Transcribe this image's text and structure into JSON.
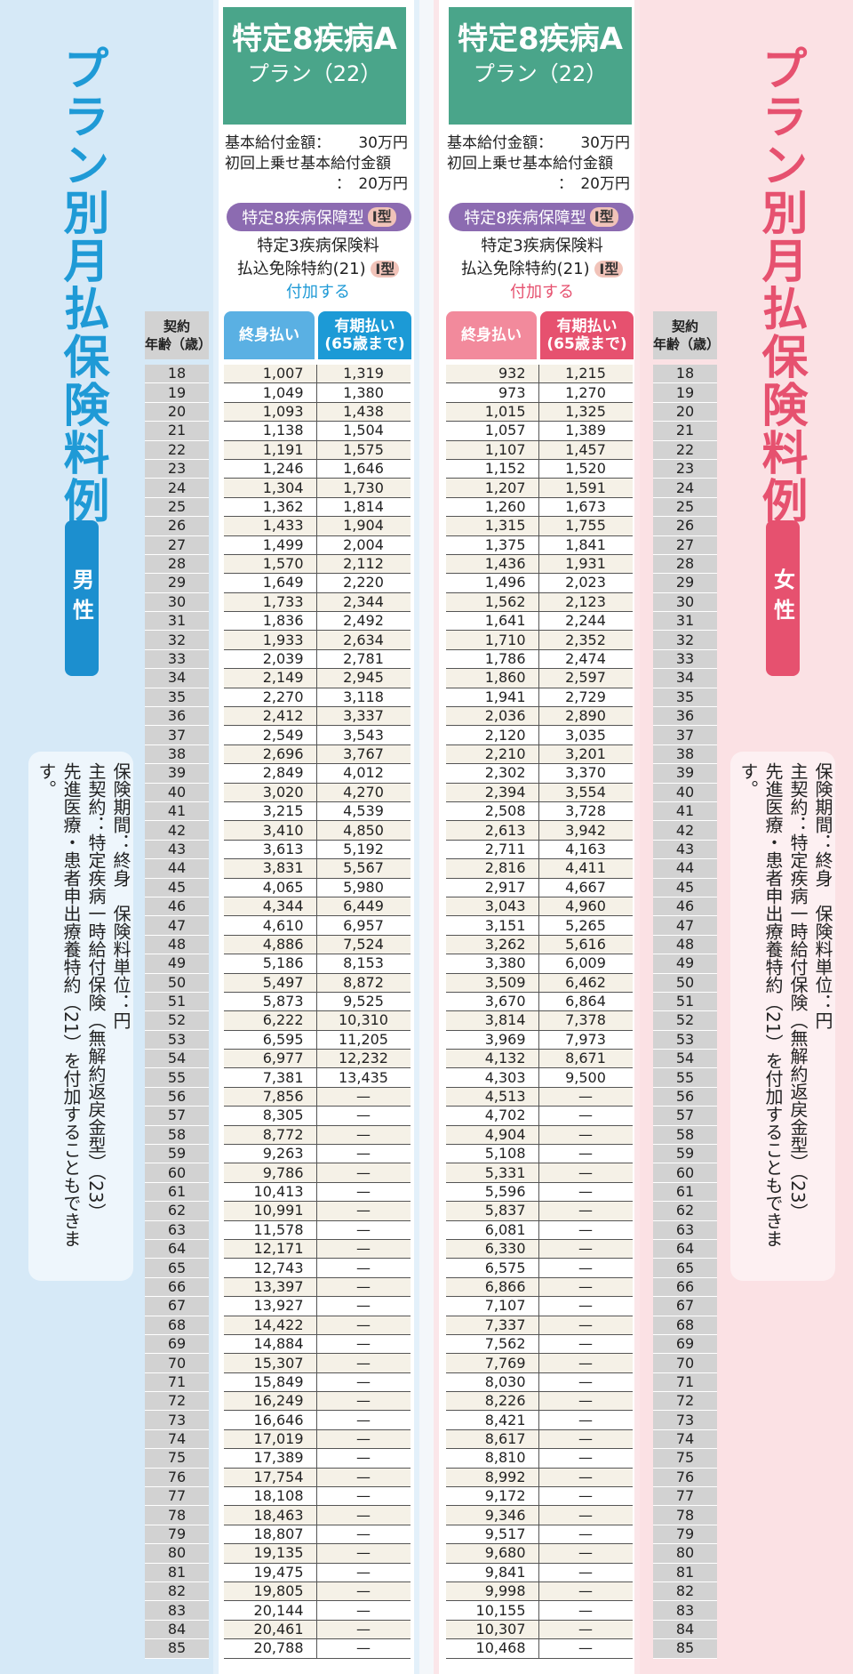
{
  "title": "プラン別月払保険料例",
  "male_label": "男性",
  "female_label": "女性",
  "notes": [
    "保険期間：終身　保険料単位：円",
    "主契約：特定疾病一時給付保険（無解約返戻金型）（23）",
    "先進医療・患者申出療養特約（21）を付加することもできます。"
  ],
  "plan": {
    "name": "特定8疾病A",
    "sub": "プラン（22）",
    "base_label": "基本給付金額：",
    "base_value": "30万円",
    "first_label": "初回上乗せ基本給付金額",
    "first_value": "：　20万円",
    "coverage": "特定8疾病保障型",
    "coverage_badge": "Ⅰ型",
    "rider_line1": "特定3疾病保険料",
    "rider_line2": "払込免除特約(21)",
    "rider_badge": "Ⅰ型",
    "rider_add": "付加する"
  },
  "headers": {
    "age": "契約\n年齢（歳）",
    "lifetime": "終身払い",
    "term": "有期払い\n(65歳まで)"
  },
  "ages": [
    18,
    19,
    20,
    21,
    22,
    23,
    24,
    25,
    26,
    27,
    28,
    29,
    30,
    31,
    32,
    33,
    34,
    35,
    36,
    37,
    38,
    39,
    40,
    41,
    42,
    43,
    44,
    45,
    46,
    47,
    48,
    49,
    50,
    51,
    52,
    53,
    54,
    55,
    56,
    57,
    58,
    59,
    60,
    61,
    62,
    63,
    64,
    65,
    66,
    67,
    68,
    69,
    70,
    71,
    72,
    73,
    74,
    75,
    76,
    77,
    78,
    79,
    80,
    81,
    82,
    83,
    84,
    85
  ],
  "male_lifetime": [
    "1,007",
    "1,049",
    "1,093",
    "1,138",
    "1,191",
    "1,246",
    "1,304",
    "1,362",
    "1,433",
    "1,499",
    "1,570",
    "1,649",
    "1,733",
    "1,836",
    "1,933",
    "2,039",
    "2,149",
    "2,270",
    "2,412",
    "2,549",
    "2,696",
    "2,849",
    "3,020",
    "3,215",
    "3,410",
    "3,613",
    "3,831",
    "4,065",
    "4,344",
    "4,610",
    "4,886",
    "5,186",
    "5,497",
    "5,873",
    "6,222",
    "6,595",
    "6,977",
    "7,381",
    "7,856",
    "8,305",
    "8,772",
    "9,263",
    "9,786",
    "10,413",
    "10,991",
    "11,578",
    "12,171",
    "12,743",
    "13,397",
    "13,927",
    "14,422",
    "14,884",
    "15,307",
    "15,849",
    "16,249",
    "16,646",
    "17,019",
    "17,389",
    "17,754",
    "18,108",
    "18,463",
    "18,807",
    "19,135",
    "19,475",
    "19,805",
    "20,144",
    "20,461",
    "20,788"
  ],
  "male_term": [
    "1,319",
    "1,380",
    "1,438",
    "1,504",
    "1,575",
    "1,646",
    "1,730",
    "1,814",
    "1,904",
    "2,004",
    "2,112",
    "2,220",
    "2,344",
    "2,492",
    "2,634",
    "2,781",
    "2,945",
    "3,118",
    "3,337",
    "3,543",
    "3,767",
    "4,012",
    "4,270",
    "4,539",
    "4,850",
    "5,192",
    "5,567",
    "5,980",
    "6,449",
    "6,957",
    "7,524",
    "8,153",
    "8,872",
    "9,525",
    "10,310",
    "11,205",
    "12,232",
    "13,435",
    "—",
    "—",
    "—",
    "—",
    "—",
    "—",
    "—",
    "—",
    "—",
    "—",
    "—",
    "—",
    "—",
    "—",
    "—",
    "—",
    "—",
    "—",
    "—",
    "—",
    "—",
    "—",
    "—",
    "—",
    "—",
    "—",
    "—",
    "—",
    "—",
    "—"
  ],
  "female_lifetime": [
    "932",
    "973",
    "1,015",
    "1,057",
    "1,107",
    "1,152",
    "1,207",
    "1,260",
    "1,315",
    "1,375",
    "1,436",
    "1,496",
    "1,562",
    "1,641",
    "1,710",
    "1,786",
    "1,860",
    "1,941",
    "2,036",
    "2,120",
    "2,210",
    "2,302",
    "2,394",
    "2,508",
    "2,613",
    "2,711",
    "2,816",
    "2,917",
    "3,043",
    "3,151",
    "3,262",
    "3,380",
    "3,509",
    "3,670",
    "3,814",
    "3,969",
    "4,132",
    "4,303",
    "4,513",
    "4,702",
    "4,904",
    "5,108",
    "5,331",
    "5,596",
    "5,837",
    "6,081",
    "6,330",
    "6,575",
    "6,866",
    "7,107",
    "7,337",
    "7,562",
    "7,769",
    "8,030",
    "8,226",
    "8,421",
    "8,617",
    "8,810",
    "8,992",
    "9,172",
    "9,346",
    "9,517",
    "9,680",
    "9,841",
    "9,998",
    "10,155",
    "10,307",
    "10,468"
  ],
  "female_term": [
    "1,215",
    "1,270",
    "1,325",
    "1,389",
    "1,457",
    "1,520",
    "1,591",
    "1,673",
    "1,755",
    "1,841",
    "1,931",
    "2,023",
    "2,123",
    "2,244",
    "2,352",
    "2,474",
    "2,597",
    "2,729",
    "2,890",
    "3,035",
    "3,201",
    "3,370",
    "3,554",
    "3,728",
    "3,942",
    "4,163",
    "4,411",
    "4,667",
    "4,960",
    "5,265",
    "5,616",
    "6,009",
    "6,462",
    "6,864",
    "7,378",
    "7,973",
    "8,671",
    "9,500",
    "—",
    "—",
    "—",
    "—",
    "—",
    "—",
    "—",
    "—",
    "—",
    "—",
    "—",
    "—",
    "—",
    "—",
    "—",
    "—",
    "—",
    "—",
    "—",
    "—",
    "—",
    "—",
    "—",
    "—",
    "—",
    "—",
    "—",
    "—",
    "—",
    "—"
  ]
}
